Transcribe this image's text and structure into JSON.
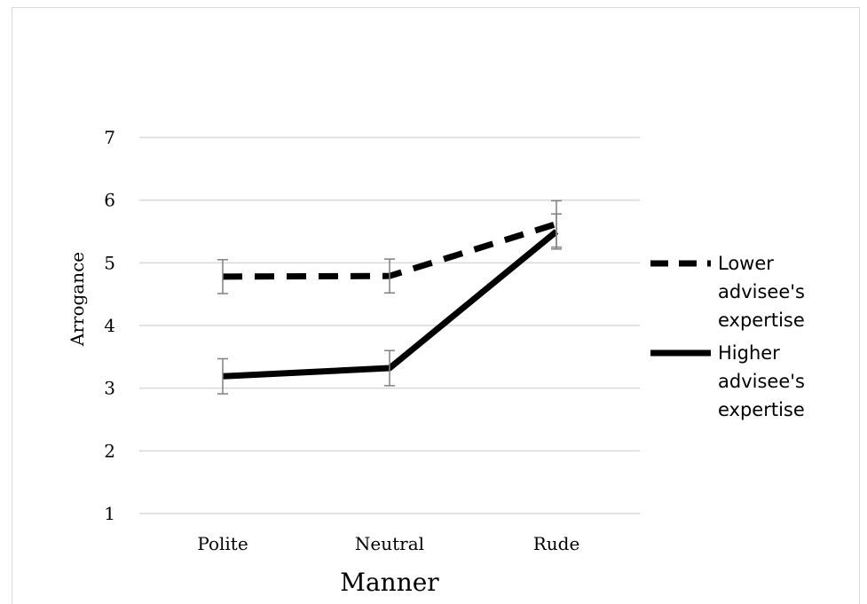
{
  "chart_data": {
    "type": "line",
    "categories": [
      "Polite",
      "Neutral",
      "Rude"
    ],
    "xlabel": "Manner",
    "ylabel": "Arrogance",
    "ylim": [
      1,
      7
    ],
    "yticks": [
      1,
      2,
      3,
      4,
      5,
      6,
      7
    ],
    "grid": true,
    "legend_position": "right",
    "series": [
      {
        "name_lines": [
          "Lower",
          "advisee's",
          "expertise"
        ],
        "style": "dashed",
        "color": "#000000",
        "values": [
          4.78,
          4.79,
          5.62
        ],
        "error": [
          0.27,
          0.27,
          0.37
        ]
      },
      {
        "name_lines": [
          "Higher",
          "advisee's",
          "expertise"
        ],
        "style": "solid",
        "color": "#000000",
        "values": [
          3.19,
          3.32,
          5.5
        ],
        "error": [
          0.28,
          0.28,
          0.28
        ]
      }
    ],
    "error_bar_color": "#808080",
    "grid_color": "#d9d9d9"
  }
}
